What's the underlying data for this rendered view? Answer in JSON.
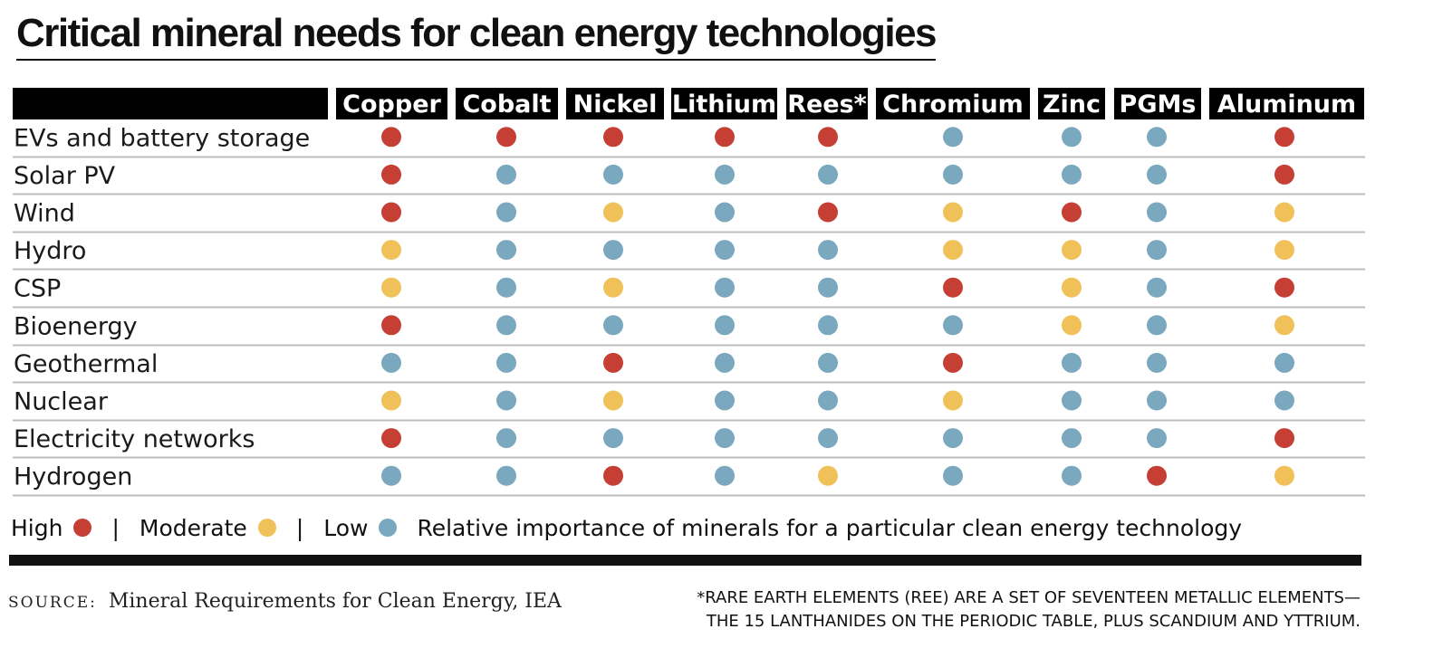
{
  "title": "Critical mineral needs for clean energy technologies",
  "colors": {
    "high": "#c53f35",
    "moderate": "#efc158",
    "low": "#7aa8bf",
    "header_bg": "#000000",
    "row_rule": "#bdbdbd"
  },
  "chart_data": {
    "type": "table",
    "title": "Critical mineral needs for clean energy technologies",
    "columns": [
      "Copper",
      "Cobalt",
      "Nickel",
      "Lithium",
      "Rees*",
      "Chromium",
      "Zinc",
      "PGMs",
      "Aluminum"
    ],
    "rows": [
      {
        "label": "EVs and battery storage",
        "values": [
          "High",
          "High",
          "High",
          "High",
          "High",
          "Low",
          "Low",
          "Low",
          "High"
        ]
      },
      {
        "label": "Solar PV",
        "values": [
          "High",
          "Low",
          "Low",
          "Low",
          "Low",
          "Low",
          "Low",
          "Low",
          "High"
        ]
      },
      {
        "label": "Wind",
        "values": [
          "High",
          "Low",
          "Moderate",
          "Low",
          "High",
          "Moderate",
          "High",
          "Low",
          "Moderate"
        ]
      },
      {
        "label": "Hydro",
        "values": [
          "Moderate",
          "Low",
          "Low",
          "Low",
          "Low",
          "Moderate",
          "Moderate",
          "Low",
          "Moderate"
        ]
      },
      {
        "label": "CSP",
        "values": [
          "Moderate",
          "Low",
          "Moderate",
          "Low",
          "Low",
          "High",
          "Moderate",
          "Low",
          "High"
        ]
      },
      {
        "label": "Bioenergy",
        "values": [
          "High",
          "Low",
          "Low",
          "Low",
          "Low",
          "Low",
          "Moderate",
          "Low",
          "Moderate"
        ]
      },
      {
        "label": "Geothermal",
        "values": [
          "Low",
          "Low",
          "High",
          "Low",
          "Low",
          "High",
          "Low",
          "Low",
          "Low"
        ]
      },
      {
        "label": "Nuclear",
        "values": [
          "Moderate",
          "Low",
          "Moderate",
          "Low",
          "Low",
          "Moderate",
          "Low",
          "Low",
          "Low"
        ]
      },
      {
        "label": "Electricity networks",
        "values": [
          "High",
          "Low",
          "Low",
          "Low",
          "Low",
          "Low",
          "Low",
          "Low",
          "High"
        ]
      },
      {
        "label": "Hydrogen",
        "values": [
          "Low",
          "Low",
          "High",
          "Low",
          "Moderate",
          "Low",
          "Low",
          "High",
          "Moderate"
        ]
      }
    ],
    "legend": [
      {
        "label": "High",
        "color": "#c53f35"
      },
      {
        "label": "Moderate",
        "color": "#efc158"
      },
      {
        "label": "Low",
        "color": "#7aa8bf"
      }
    ]
  },
  "legend": {
    "high_label": "High",
    "moderate_label": "Moderate",
    "low_label": "Low",
    "separator": "|",
    "description": "Relative importance of minerals for a particular clean energy technology"
  },
  "source": {
    "prefix": "SOURCE:",
    "text": "Mineral Requirements for Clean Energy, IEA"
  },
  "footnote": {
    "line1": "*RARE EARTH ELEMENTS (REE) ARE A SET OF SEVENTEEN METALLIC ELEMENTS—",
    "line2": "THE 15 LANTHANIDES ON THE PERIODIC TABLE, PLUS SCANDIUM AND YTTRIUM."
  }
}
